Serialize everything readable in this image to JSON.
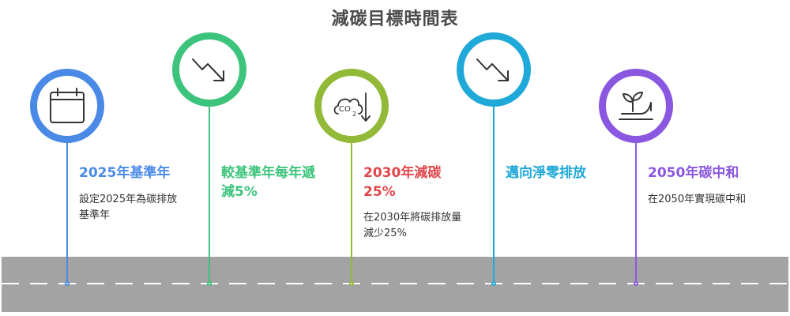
{
  "title": "減碳目標時間表",
  "colors": {
    "m1": "#4a8ae6",
    "m2": "#3dc47c",
    "m3": "#92b937",
    "m4": "#1fa9d8",
    "m5": "#8a57e1",
    "heading3": "#e0474c",
    "road": "#a3a3a3"
  },
  "milestones": [
    {
      "icon": "calendar-icon",
      "heading": "2025年基準年",
      "description": "設定2025年為碳排放\n基準年"
    },
    {
      "icon": "trend-down-icon",
      "heading": "較基準年每年遞\n減5%",
      "description": ""
    },
    {
      "icon": "co2-down-icon",
      "heading": "2030年減碳\n25%",
      "description": "在2030年將碳排放量\n減少25%"
    },
    {
      "icon": "trend-down-icon",
      "heading": "邁向淨零排放",
      "description": ""
    },
    {
      "icon": "seedling-hand-icon",
      "heading": "2050年碳中和",
      "description": "在2050年實現碳中和"
    }
  ]
}
